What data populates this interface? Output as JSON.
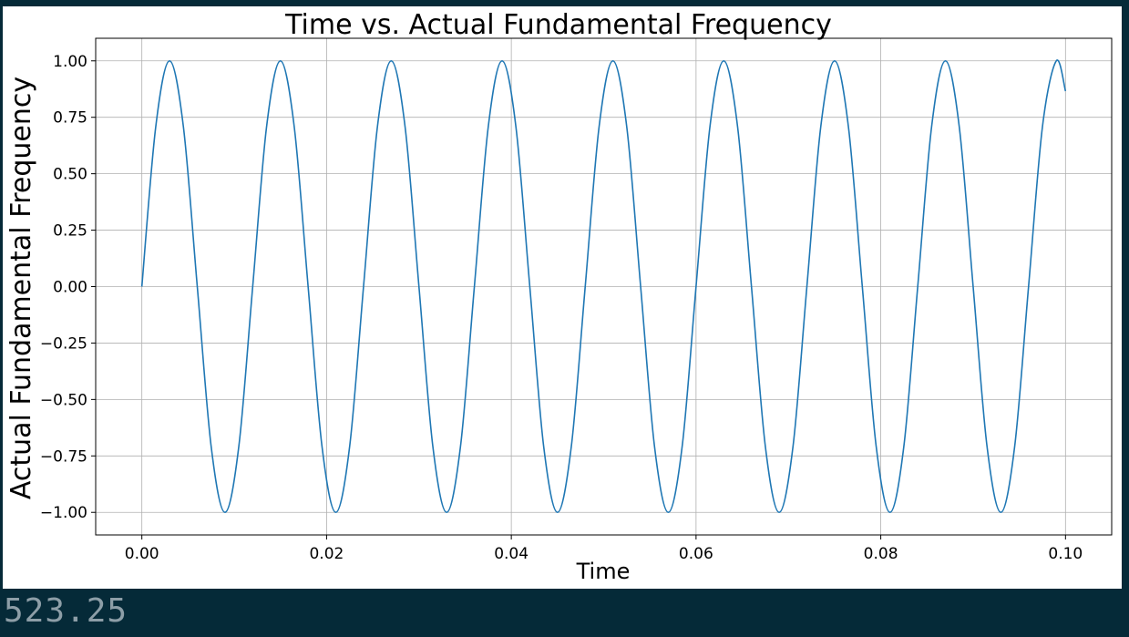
{
  "status_readout": "523.25",
  "colors": {
    "background": "#052a38",
    "plot_background": "#ffffff",
    "line": "#1f77b4",
    "grid": "#b0b0b0",
    "readout_text": "#8d9ea7"
  },
  "chart_data": {
    "type": "line",
    "title": "Time vs. Actual Fundamental Frequency",
    "xlabel": "Time",
    "ylabel": "Actual Fundamental Frequency",
    "xlim": [
      -0.005,
      0.105
    ],
    "ylim": [
      -1.1,
      1.1
    ],
    "grid": true,
    "x_ticks": [
      0.0,
      0.02,
      0.04,
      0.06,
      0.08,
      0.1
    ],
    "x_tick_labels": [
      "0.00",
      "0.02",
      "0.04",
      "0.06",
      "0.08",
      "0.10"
    ],
    "y_ticks": [
      -1.0,
      -0.75,
      -0.5,
      -0.25,
      0.0,
      0.25,
      0.5,
      0.75,
      1.0
    ],
    "y_tick_labels": [
      "−1.00",
      "−0.75",
      "−0.50",
      "−0.25",
      "0.00",
      "0.25",
      "0.50",
      "0.75",
      "1.00"
    ],
    "series": [
      {
        "x": [
          0.0,
          0.0015,
          0.003,
          0.0045,
          0.006,
          0.0075,
          0.009,
          0.0105,
          0.012,
          0.0135,
          0.015,
          0.0165,
          0.018,
          0.0195,
          0.021,
          0.0225,
          0.024,
          0.0255,
          0.027,
          0.0285,
          0.03,
          0.0315,
          0.033,
          0.0345,
          0.036,
          0.0375,
          0.039,
          0.0405,
          0.042,
          0.0435,
          0.045,
          0.0465,
          0.048,
          0.0495,
          0.051,
          0.0525,
          0.054,
          0.0555,
          0.057,
          0.0585,
          0.06,
          0.0615,
          0.063,
          0.0645,
          0.066,
          0.0675,
          0.069,
          0.0705,
          0.072,
          0.0735,
          0.075,
          0.0765,
          0.078,
          0.0795,
          0.081,
          0.0825,
          0.084,
          0.0855,
          0.087,
          0.0885,
          0.09,
          0.0915,
          0.093,
          0.0945,
          0.096,
          0.0975,
          0.099,
          0.1
        ],
        "y": [
          0.0,
          0.707,
          1.0,
          0.707,
          0.0,
          -0.707,
          -1.0,
          -0.707,
          0.0,
          0.707,
          1.0,
          0.707,
          0.0,
          -0.707,
          -1.0,
          -0.707,
          0.0,
          0.707,
          1.0,
          0.707,
          0.0,
          -0.707,
          -1.0,
          -0.707,
          0.0,
          0.707,
          1.0,
          0.707,
          0.0,
          -0.707,
          -1.0,
          -0.707,
          0.0,
          0.707,
          1.0,
          0.707,
          0.0,
          -0.707,
          -1.0,
          -0.707,
          0.0,
          0.707,
          1.0,
          0.707,
          0.0,
          -0.707,
          -1.0,
          -0.707,
          0.0,
          0.707,
          1.0,
          0.707,
          0.0,
          -0.707,
          -1.0,
          -0.707,
          0.0,
          0.707,
          1.0,
          0.707,
          0.0,
          -0.707,
          -1.0,
          -0.707,
          0.0,
          0.707,
          1.0,
          0.866
        ]
      }
    ]
  }
}
